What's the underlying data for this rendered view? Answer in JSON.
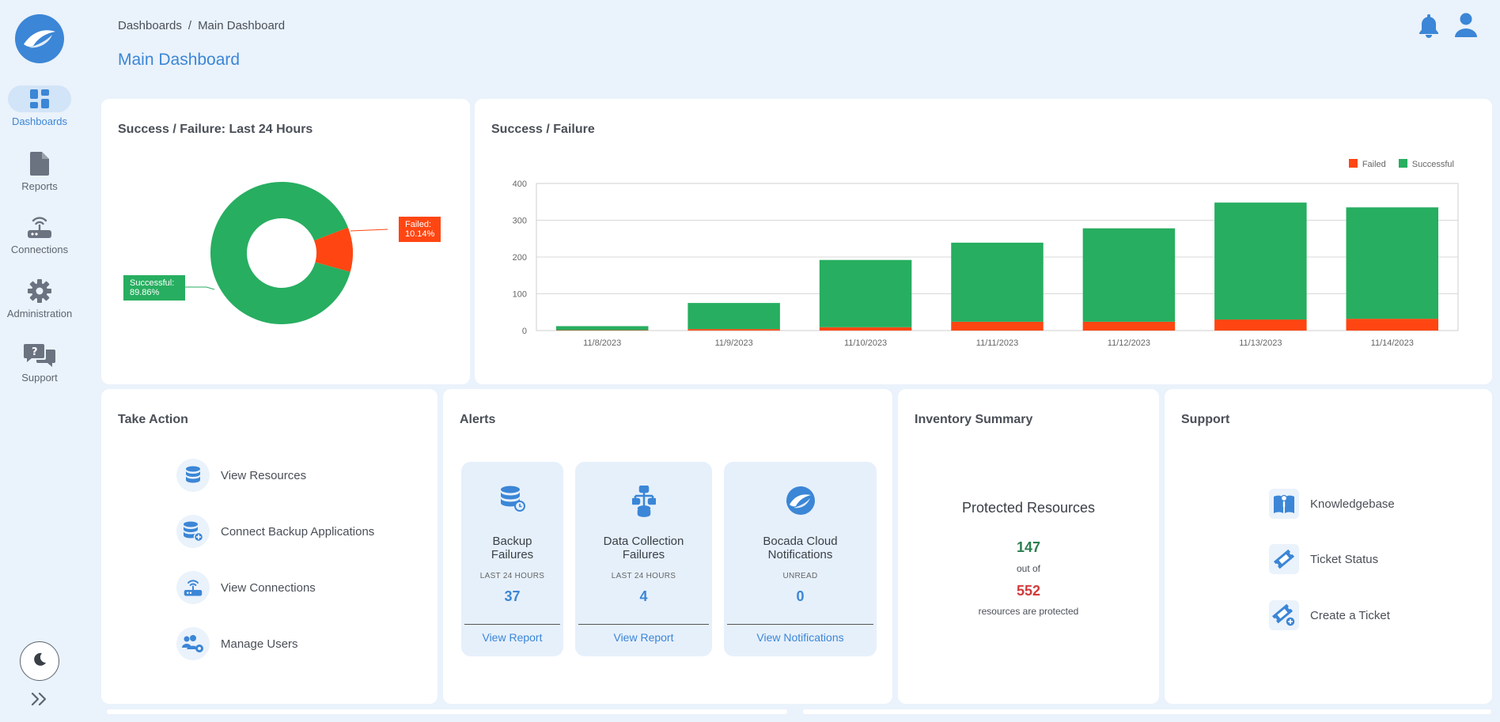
{
  "sidebar": {
    "items": [
      {
        "label": "Dashboards",
        "icon": "dashboard-icon",
        "active": true
      },
      {
        "label": "Reports",
        "icon": "document-icon",
        "active": false
      },
      {
        "label": "Connections",
        "icon": "router-icon",
        "active": false
      },
      {
        "label": "Administration",
        "icon": "gear-icon",
        "active": false
      },
      {
        "label": "Support",
        "icon": "chat-bubbles-icon",
        "active": false
      }
    ],
    "theme_icon": "moon-icon",
    "expand_icon": "double-chevron-right-icon"
  },
  "header": {
    "breadcrumb": [
      "Dashboards",
      "Main Dashboard"
    ],
    "breadcrumb_sep": "/",
    "title": "Main Dashboard",
    "bell_icon": "bell-icon",
    "user_icon": "user-icon"
  },
  "colors": {
    "accent": "#3b86d6",
    "success": "#27ae60",
    "failed": "#ff4612",
    "alert_count": "#3b86d6",
    "protected": "#2e7d4f",
    "total": "#d23a3a"
  },
  "pie_card": {
    "title": "Success / Failure: Last 24 Hours",
    "failed_label": "Failed:",
    "failed_value": "10.14%",
    "success_label": "Successful:",
    "success_value": "89.86%"
  },
  "bar_card": {
    "title": "Success / Failure",
    "legend": {
      "failed": "Failed",
      "successful": "Successful"
    }
  },
  "chart_data": [
    {
      "type": "pie",
      "title": "Success / Failure: Last 24 Hours",
      "labels": [
        "Failed",
        "Successful"
      ],
      "values": [
        10.14,
        89.86
      ],
      "donut": true
    },
    {
      "type": "bar",
      "stacked": true,
      "title": "Success / Failure",
      "categories": [
        "11/8/2023",
        "11/9/2023",
        "11/10/2023",
        "11/11/2023",
        "11/12/2023",
        "11/13/2023",
        "11/14/2023"
      ],
      "series": [
        {
          "name": "Failed",
          "values": [
            1,
            4,
            9,
            24,
            24,
            30,
            32
          ]
        },
        {
          "name": "Successful",
          "values": [
            11,
            71,
            183,
            215,
            254,
            318,
            303
          ]
        }
      ],
      "ylim": [
        0,
        400
      ],
      "yticks": [
        0,
        100,
        200,
        300,
        400
      ],
      "legend": "top-right",
      "grid": true
    }
  ],
  "take_action": {
    "title": "Take Action",
    "items": [
      {
        "label": "View Resources",
        "icon": "database-icon"
      },
      {
        "label": "Connect Backup Applications",
        "icon": "database-add-icon"
      },
      {
        "label": "View Connections",
        "icon": "router-icon"
      },
      {
        "label": "Manage Users",
        "icon": "users-gear-icon"
      }
    ]
  },
  "alerts": {
    "title": "Alerts",
    "tiles": [
      {
        "title_line1": "Backup",
        "title_line2": "Failures",
        "sub": "LAST 24 HOURS",
        "count": "37",
        "link": "View Report",
        "icon": "database-clock-icon"
      },
      {
        "title_line1": "Data Collection",
        "title_line2": "Failures",
        "sub": "LAST 24 HOURS",
        "count": "4",
        "link": "View Report",
        "icon": "network-hierarchy-icon"
      },
      {
        "title_line1": "Bocada Cloud",
        "title_line2": "Notifications",
        "sub": "UNREAD",
        "count": "0",
        "link": "View Notifications",
        "icon": "bocada-logo-icon"
      }
    ]
  },
  "inventory": {
    "title": "Inventory Summary",
    "heading": "Protected Resources",
    "protected": "147",
    "out_of": "out of",
    "total": "552",
    "caption": "resources are protected"
  },
  "support": {
    "title": "Support",
    "items": [
      {
        "label": "Knowledgebase",
        "icon": "book-icon"
      },
      {
        "label": "Ticket Status",
        "icon": "ticket-icon"
      },
      {
        "label": "Create a Ticket",
        "icon": "ticket-add-icon"
      }
    ]
  }
}
